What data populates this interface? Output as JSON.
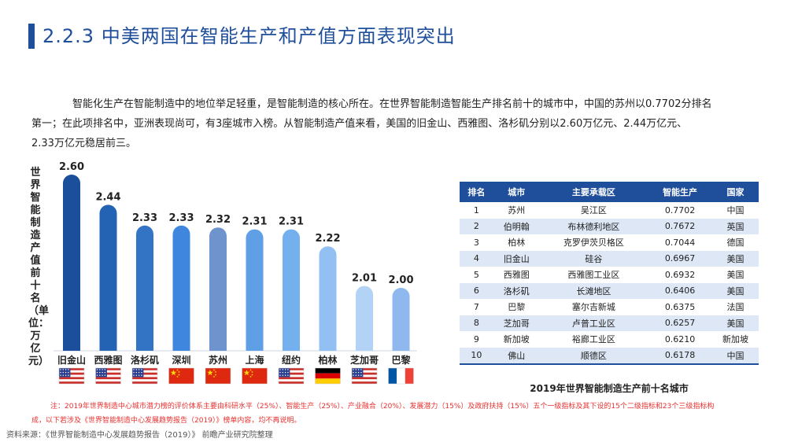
{
  "header": {
    "title": "2.2.3 中美两国在智能生产和产值方面表现突出"
  },
  "intro": {
    "line1": "智能化生产在智能制造中的地位举足轻重，是智能制造的核心所在。在世界智能制造智能生产排名前十的城市中，中国的苏州以0.7702分排名",
    "line2": "第一；在此项排名中，亚洲表现尚可，有3座城市入榜。从智能制造产值来看，美国的旧金山、西雅图、洛杉矶分别以2.60万亿元、2.44万亿元、",
    "line3": "2.33万亿元稳居前三。"
  },
  "chart_data": {
    "type": "bar",
    "ylabel": "世界智能制造产值前十名（单位：万亿元）",
    "categories": [
      "旧金山",
      "西雅图",
      "洛杉矶",
      "深圳",
      "苏州",
      "上海",
      "纽约",
      "柏林",
      "芝加哥",
      "巴黎"
    ],
    "values": [
      2.6,
      2.44,
      2.33,
      2.33,
      2.32,
      2.31,
      2.31,
      2.22,
      2.01,
      2.0
    ],
    "value_labels": [
      "2.60",
      "2.44",
      "2.33",
      "2.33",
      "2.32",
      "2.31",
      "2.31",
      "2.22",
      "2.01",
      "2.00"
    ],
    "flags": [
      "us",
      "us",
      "us",
      "cn",
      "cn",
      "cn",
      "us",
      "de",
      "us",
      "fr"
    ],
    "bar_colors": [
      "#1b4f9c",
      "#2462b3",
      "#3474c4",
      "#3f86de",
      "#6f93cc",
      "#5f9fe6",
      "#74b0ee",
      "#92c0f2",
      "#b3d3f6",
      "#8fb9ee"
    ]
  },
  "table": {
    "headers": [
      "排名",
      "城市",
      "主要承载区",
      "智能生产",
      "国家"
    ],
    "rows": [
      [
        "1",
        "苏州",
        "吴江区",
        "0.7702",
        "中国"
      ],
      [
        "2",
        "伯明翰",
        "布林德利地区",
        "0.7672",
        "英国"
      ],
      [
        "3",
        "柏林",
        "克罗伊茨贝格区",
        "0.7044",
        "德国"
      ],
      [
        "4",
        "旧金山",
        "硅谷",
        "0.6967",
        "美国"
      ],
      [
        "5",
        "西雅图",
        "西雅图工业区",
        "0.6932",
        "美国"
      ],
      [
        "6",
        "洛杉矶",
        "长滩地区",
        "0.6406",
        "美国"
      ],
      [
        "7",
        "巴黎",
        "塞尔吉新城",
        "0.6375",
        "法国"
      ],
      [
        "8",
        "芝加哥",
        "卢普工业区",
        "0.6257",
        "美国"
      ],
      [
        "9",
        "新加坡",
        "裕廊工业区",
        "0.6210",
        "新加坡"
      ],
      [
        "10",
        "佛山",
        "顺德区",
        "0.6178",
        "中国"
      ]
    ],
    "caption": "2019年世界智能制造生产前十名城市"
  },
  "note": {
    "line1": "注：2019年世界制造中心城市潜力榜的评价体系主要由科研水平（25%）、智能生产（25%）、产业融合（20%）、发展潜力（15%）及政府扶持（15%）五个一级指标及其下设的15个二级指标和23个三级指标构",
    "line2": "成，以下若涉及《世界智能制造中心发展趋势报告（2019）》榜单内容，均不再说明。"
  },
  "source": "资料来源：《世界智能制造中心发展趋势报告（2019）》 前瞻产业研究院整理",
  "colors": {
    "accent": "#1f4e9b",
    "note_red": "#e8312f",
    "table_stripe": "#dde7f5"
  }
}
